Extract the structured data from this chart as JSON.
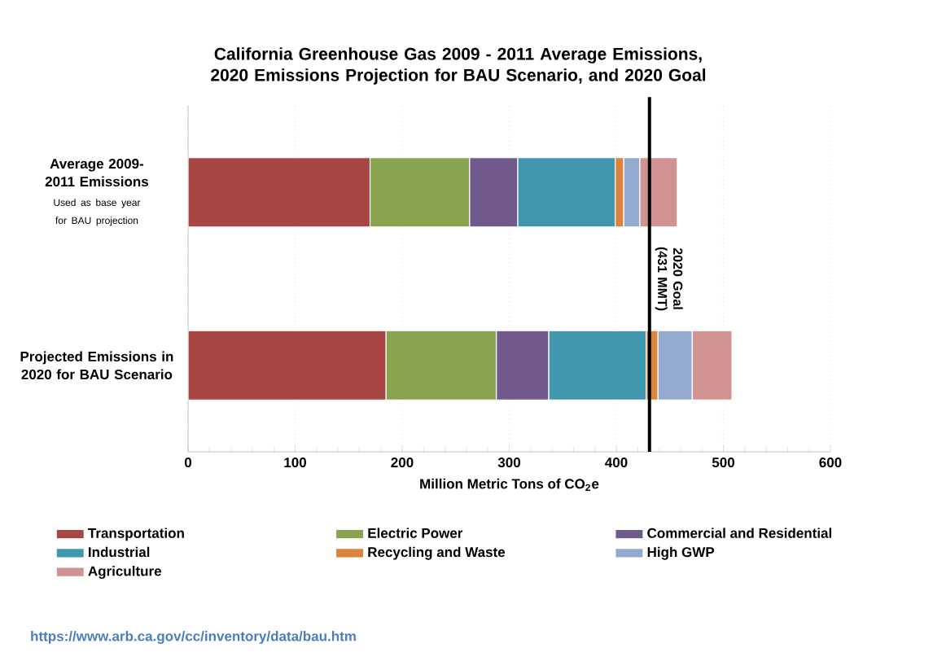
{
  "chart_data": {
    "type": "bar",
    "orientation": "horizontal",
    "stacked": true,
    "title": "California Greenhouse Gas 2009 - 2011 Average Emissions, 2020 Emissions Projection for BAU Scenario, and 2020 Goal",
    "xlabel": "Million Metric Tons of CO$_{2}$e",
    "categories": [
      "Average 2009-2011 Emissions",
      "Projected Emissions in 2020 for BAU Scenario"
    ],
    "series": [
      {
        "name": "Transportation",
        "color": "#a84644",
        "values": [
          170,
          185
        ]
      },
      {
        "name": "Electric Power",
        "color": "#89a44e",
        "values": [
          93,
          103
        ]
      },
      {
        "name": "Commercial and Residential",
        "color": "#71598e",
        "values": [
          45,
          49
        ]
      },
      {
        "name": "Industrial",
        "color": "#4097ae",
        "values": [
          91,
          91
        ]
      },
      {
        "name": "Recycling and Waste",
        "color": "#db843d",
        "values": [
          8,
          11
        ]
      },
      {
        "name": "High GWP",
        "color": "#93a9cf",
        "values": [
          15,
          32
        ]
      },
      {
        "name": "Agriculture",
        "color": "#d19392",
        "values": [
          35,
          37
        ]
      }
    ],
    "xlim": [
      0,
      600
    ],
    "xticks": [
      0,
      100,
      200,
      300,
      400,
      500,
      600
    ],
    "grid": "x",
    "legend": "bottom",
    "ref_lines": [
      {
        "axis": "x",
        "value": 431,
        "label": "2020 Goal (431 MMT)",
        "color": "#000000"
      }
    ],
    "annotations": [
      "Used as base year for BAU projection",
      "https://www.arb.ca.gov/cc/inventory/data/bau.htm"
    ]
  }
}
